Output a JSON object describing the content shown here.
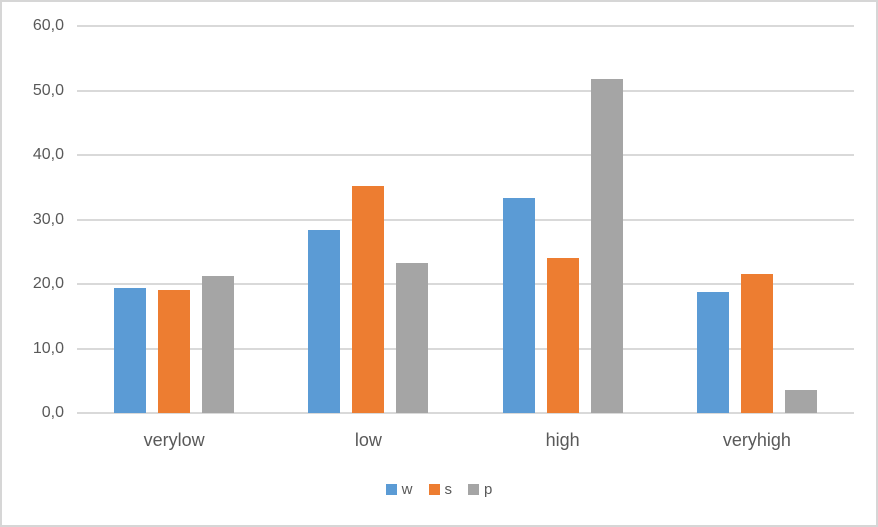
{
  "chart_data": {
    "type": "bar",
    "title": "",
    "xlabel": "",
    "ylabel": "",
    "categories": [
      "verylow",
      "low",
      "high",
      "veryhigh"
    ],
    "series": [
      {
        "name": "w",
        "color": "#5B9BD5",
        "values": [
          19.4,
          28.4,
          33.4,
          18.8
        ]
      },
      {
        "name": "s",
        "color": "#ED7D31",
        "values": [
          19.0,
          35.2,
          24.0,
          21.5
        ]
      },
      {
        "name": "p",
        "color": "#A5A5A5",
        "values": [
          21.3,
          23.2,
          51.8,
          3.5
        ]
      }
    ],
    "ylim": [
      0,
      60
    ],
    "ytick_step": 10,
    "ytick_labels": [
      "0,0",
      "10,0",
      "20,0",
      "30,0",
      "40,0",
      "50,0",
      "60,0"
    ],
    "grid": true,
    "gridline_color": "#D9D9D9",
    "axis_text_color": "#595959",
    "legend_position": "bottom"
  }
}
